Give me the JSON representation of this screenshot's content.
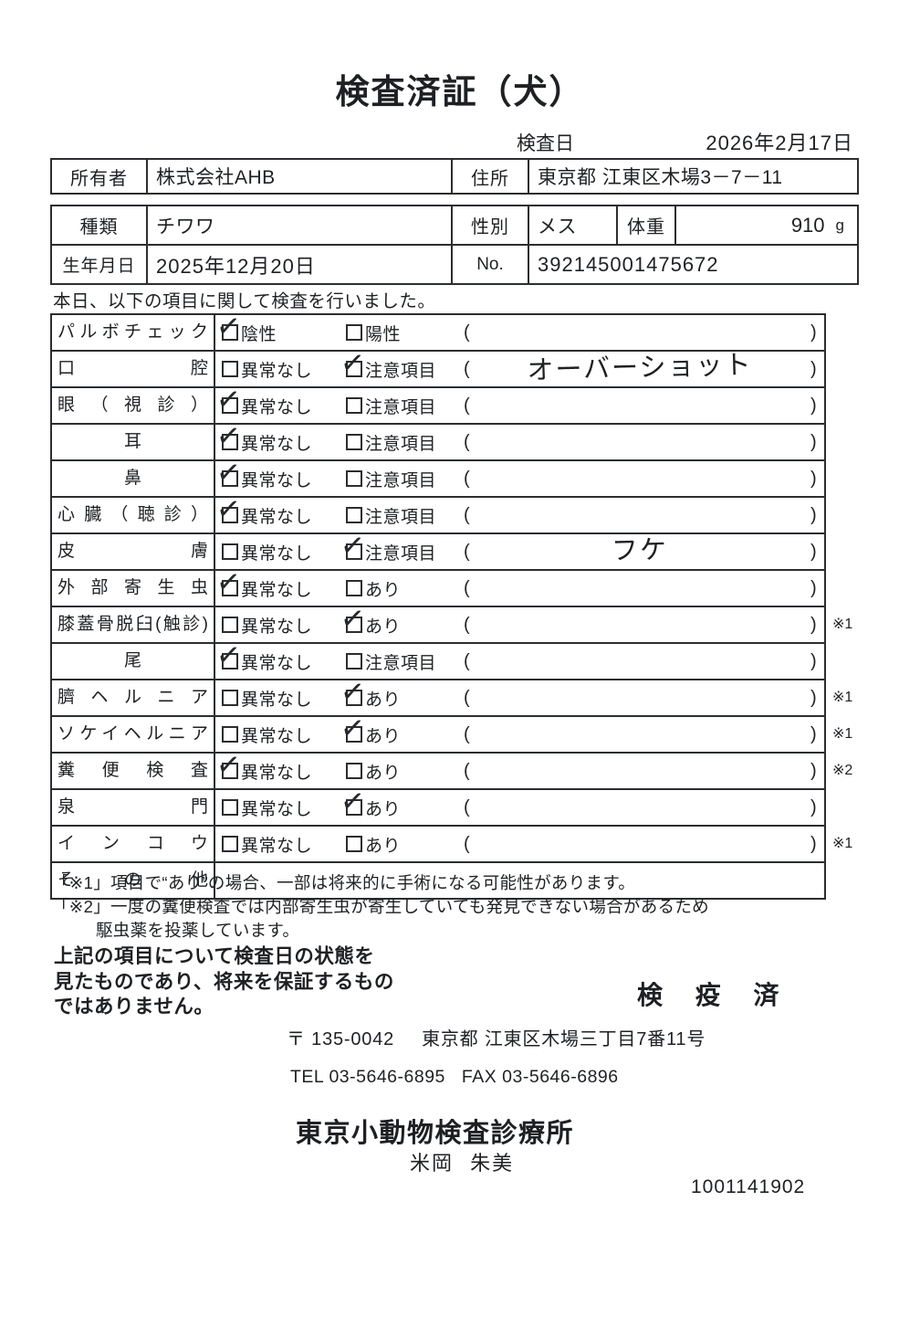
{
  "title": "検査済証（犬）",
  "inspection_date": {
    "label": "検査日",
    "value": "2026年2月17日"
  },
  "owner_table": {
    "owner_label": "所有者",
    "owner_value": "株式会社AHB",
    "address_label": "住所",
    "address_value": "東京都 江東区木場3－7－11"
  },
  "pet_table": {
    "breed_label": "種類",
    "breed_value": "チワワ",
    "sex_label": "性別",
    "sex_value": "メス",
    "weight_label": "体重",
    "weight_value": "910",
    "weight_unit": "g",
    "birth_label": "生年月日",
    "birth_value": "2025年12月20日",
    "no_label": "No.",
    "no_value": "392145001475672"
  },
  "intro": "本日、以下の項目に関して検査を行いました。",
  "exam_table": {
    "rows": [
      {
        "label": "パルボチェック",
        "options": [
          {
            "text": "陰性",
            "checked": true
          },
          {
            "text": "陽性",
            "checked": false
          }
        ],
        "note": "",
        "mark": ""
      },
      {
        "label": "口腔",
        "options": [
          {
            "text": "異常なし",
            "checked": false
          },
          {
            "text": "注意項目",
            "checked": true
          }
        ],
        "note": "オーバーショット",
        "mark": ""
      },
      {
        "label": "眼（視診）",
        "options": [
          {
            "text": "異常なし",
            "checked": true
          },
          {
            "text": "注意項目",
            "checked": false
          }
        ],
        "note": "",
        "mark": ""
      },
      {
        "label": "耳",
        "options": [
          {
            "text": "異常なし",
            "checked": true
          },
          {
            "text": "注意項目",
            "checked": false
          }
        ],
        "note": "",
        "mark": ""
      },
      {
        "label": "鼻",
        "options": [
          {
            "text": "異常なし",
            "checked": true
          },
          {
            "text": "注意項目",
            "checked": false
          }
        ],
        "note": "",
        "mark": ""
      },
      {
        "label": "心臓（聴診）",
        "options": [
          {
            "text": "異常なし",
            "checked": true
          },
          {
            "text": "注意項目",
            "checked": false
          }
        ],
        "note": "",
        "mark": ""
      },
      {
        "label": "皮膚",
        "options": [
          {
            "text": "異常なし",
            "checked": false
          },
          {
            "text": "注意項目",
            "checked": true
          }
        ],
        "note": "フケ",
        "mark": ""
      },
      {
        "label": "外部寄生虫",
        "options": [
          {
            "text": "異常なし",
            "checked": true
          },
          {
            "text": "あり",
            "checked": false
          }
        ],
        "note": "",
        "mark": ""
      },
      {
        "label": "膝蓋骨脱臼(触診)",
        "options": [
          {
            "text": "異常なし",
            "checked": false
          },
          {
            "text": "あり",
            "checked": true
          }
        ],
        "note": "",
        "mark": "※1"
      },
      {
        "label": "尾",
        "options": [
          {
            "text": "異常なし",
            "checked": true
          },
          {
            "text": "注意項目",
            "checked": false
          }
        ],
        "note": "",
        "mark": ""
      },
      {
        "label": "臍ヘルニア",
        "options": [
          {
            "text": "異常なし",
            "checked": false
          },
          {
            "text": "あり",
            "checked": true
          }
        ],
        "note": "",
        "mark": "※1"
      },
      {
        "label": "ソケイヘルニア",
        "options": [
          {
            "text": "異常なし",
            "checked": false
          },
          {
            "text": "あり",
            "checked": true
          }
        ],
        "note": "",
        "mark": "※1"
      },
      {
        "label": "糞便検査",
        "options": [
          {
            "text": "異常なし",
            "checked": true
          },
          {
            "text": "あり",
            "checked": false
          }
        ],
        "note": "",
        "mark": "※2"
      },
      {
        "label": "泉門",
        "options": [
          {
            "text": "異常なし",
            "checked": false
          },
          {
            "text": "あり",
            "checked": true
          }
        ],
        "note": "",
        "mark": ""
      },
      {
        "label": "インコウ",
        "options": [
          {
            "text": "異常なし",
            "checked": false
          },
          {
            "text": "あり",
            "checked": false
          }
        ],
        "note": "",
        "mark": "※1"
      },
      {
        "label": "その他",
        "options": [],
        "note": "",
        "mark": ""
      }
    ]
  },
  "footnotes": [
    "「※1」項目で“あり”の場合、一部は将来的に手術になる可能性があります。",
    "「※2」一度の糞便検査では内部寄生虫が寄生していても発見できない場合があるため",
    "駆虫薬を投薬しています。"
  ],
  "disclaimer": [
    "上記の項目について検査日の状態を",
    "見たものであり、将来を保証するもの",
    "ではありません。"
  ],
  "stamp": "検 疫 済",
  "clinic": {
    "postal": "〒 135-0042",
    "address": "東京都 江東区木場三丁目7番11号",
    "tel": "TEL 03-5646-6895",
    "fax": "FAX 03-5646-6896",
    "name": "東京小動物検査診療所",
    "veterinarian": "米岡 朱美",
    "document_number": "1001141902"
  }
}
